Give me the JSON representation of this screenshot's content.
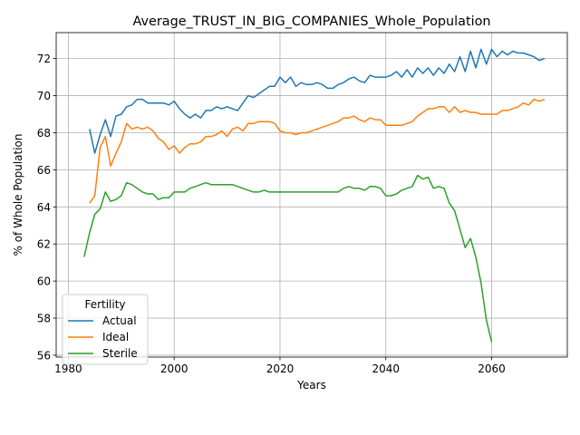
{
  "chart_data": {
    "type": "line",
    "title": "Average_TRUST_IN_BIG_COMPANIES_Whole_Population",
    "xlabel": "Years",
    "ylabel": "% of Whole Population",
    "xlim": [
      1977.7,
      2074.3
    ],
    "ylim": [
      55.9,
      73.4
    ],
    "xticks": [
      1980,
      2000,
      2020,
      2040,
      2060
    ],
    "yticks": [
      56,
      58,
      60,
      62,
      64,
      66,
      68,
      70,
      72
    ],
    "grid": true,
    "legend": {
      "title": "Fertility",
      "placement": "lower-left"
    },
    "series": [
      {
        "name": "Actual",
        "color": "#1f77b4",
        "x": [
          1984,
          1985,
          1986,
          1987,
          1988,
          1989,
          1990,
          1991,
          1992,
          1993,
          1994,
          1995,
          1996,
          1997,
          1998,
          1999,
          2000,
          2001,
          2002,
          2003,
          2004,
          2005,
          2006,
          2007,
          2008,
          2009,
          2010,
          2011,
          2012,
          2013,
          2014,
          2015,
          2016,
          2017,
          2018,
          2019,
          2020,
          2021,
          2022,
          2023,
          2024,
          2025,
          2026,
          2027,
          2028,
          2029,
          2030,
          2031,
          2032,
          2033,
          2034,
          2035,
          2036,
          2037,
          2038,
          2039,
          2040,
          2041,
          2042,
          2043,
          2044,
          2045,
          2046,
          2047,
          2048,
          2049,
          2050,
          2051,
          2052,
          2053,
          2054,
          2055,
          2056,
          2057,
          2058,
          2059,
          2060,
          2061,
          2062,
          2063,
          2064,
          2065,
          2066,
          2067,
          2068,
          2069,
          2070
        ],
        "values": [
          68.2,
          66.9,
          67.9,
          68.7,
          67.8,
          68.9,
          69.0,
          69.4,
          69.5,
          69.8,
          69.8,
          69.6,
          69.6,
          69.6,
          69.6,
          69.5,
          69.7,
          69.3,
          69.0,
          68.8,
          69.0,
          68.8,
          69.2,
          69.2,
          69.4,
          69.3,
          69.4,
          69.3,
          69.2,
          69.6,
          70.0,
          69.9,
          70.1,
          70.3,
          70.5,
          70.5,
          71.0,
          70.7,
          71.0,
          70.5,
          70.7,
          70.6,
          70.6,
          70.7,
          70.6,
          70.4,
          70.4,
          70.6,
          70.7,
          70.9,
          71.0,
          70.8,
          70.7,
          71.1,
          71.0,
          71.0,
          71.0,
          71.1,
          71.3,
          71.0,
          71.4,
          71.0,
          71.5,
          71.2,
          71.5,
          71.1,
          71.5,
          71.2,
          71.7,
          71.3,
          72.1,
          71.3,
          72.4,
          71.5,
          72.5,
          71.7,
          72.5,
          72.1,
          72.4,
          72.2,
          72.4,
          72.3,
          72.3,
          72.2,
          72.1,
          71.9,
          72.0
        ]
      },
      {
        "name": "Ideal",
        "color": "#ff7f0e",
        "x": [
          1984,
          1985,
          1986,
          1987,
          1988,
          1989,
          1990,
          1991,
          1992,
          1993,
          1994,
          1995,
          1996,
          1997,
          1998,
          1999,
          2000,
          2001,
          2002,
          2003,
          2004,
          2005,
          2006,
          2007,
          2008,
          2009,
          2010,
          2011,
          2012,
          2013,
          2014,
          2015,
          2016,
          2017,
          2018,
          2019,
          2020,
          2021,
          2022,
          2023,
          2024,
          2025,
          2026,
          2027,
          2028,
          2029,
          2030,
          2031,
          2032,
          2033,
          2034,
          2035,
          2036,
          2037,
          2038,
          2039,
          2040,
          2041,
          2042,
          2043,
          2044,
          2045,
          2046,
          2047,
          2048,
          2049,
          2050,
          2051,
          2052,
          2053,
          2054,
          2055,
          2056,
          2057,
          2058,
          2059,
          2060,
          2061,
          2062,
          2063,
          2064,
          2065,
          2066,
          2067,
          2068,
          2069,
          2070
        ],
        "values": [
          64.2,
          64.6,
          67.2,
          67.8,
          66.2,
          66.9,
          67.5,
          68.5,
          68.2,
          68.3,
          68.2,
          68.3,
          68.1,
          67.7,
          67.5,
          67.1,
          67.3,
          66.9,
          67.2,
          67.4,
          67.4,
          67.5,
          67.8,
          67.8,
          67.9,
          68.1,
          67.8,
          68.2,
          68.3,
          68.1,
          68.5,
          68.5,
          68.6,
          68.6,
          68.6,
          68.5,
          68.1,
          68.0,
          68.0,
          67.9,
          68.0,
          68.0,
          68.1,
          68.2,
          68.3,
          68.4,
          68.5,
          68.6,
          68.8,
          68.8,
          68.9,
          68.7,
          68.6,
          68.8,
          68.7,
          68.7,
          68.4,
          68.4,
          68.4,
          68.4,
          68.5,
          68.6,
          68.9,
          69.1,
          69.3,
          69.3,
          69.4,
          69.4,
          69.1,
          69.4,
          69.1,
          69.2,
          69.1,
          69.1,
          69.0,
          69.0,
          69.0,
          69.0,
          69.2,
          69.2,
          69.3,
          69.4,
          69.6,
          69.5,
          69.8,
          69.7,
          69.8
        ]
      },
      {
        "name": "Sterile",
        "color": "#2ca02c",
        "x": [
          1983,
          1984,
          1985,
          1986,
          1987,
          1988,
          1989,
          1990,
          1991,
          1992,
          1993,
          1994,
          1995,
          1996,
          1997,
          1998,
          1999,
          2000,
          2001,
          2002,
          2003,
          2004,
          2005,
          2006,
          2007,
          2008,
          2009,
          2010,
          2011,
          2012,
          2013,
          2014,
          2015,
          2016,
          2017,
          2018,
          2019,
          2020,
          2021,
          2022,
          2023,
          2024,
          2025,
          2026,
          2027,
          2028,
          2029,
          2030,
          2031,
          2032,
          2033,
          2034,
          2035,
          2036,
          2037,
          2038,
          2039,
          2040,
          2041,
          2042,
          2043,
          2044,
          2045,
          2046,
          2047,
          2048,
          2049,
          2050,
          2051,
          2052,
          2053,
          2054,
          2055,
          2056,
          2057,
          2058,
          2059,
          2060
        ],
        "values": [
          61.3,
          62.6,
          63.6,
          63.9,
          64.8,
          64.3,
          64.4,
          64.6,
          65.3,
          65.2,
          65.0,
          64.8,
          64.7,
          64.7,
          64.4,
          64.5,
          64.5,
          64.8,
          64.8,
          64.8,
          65.0,
          65.1,
          65.2,
          65.3,
          65.2,
          65.2,
          65.2,
          65.2,
          65.2,
          65.1,
          65.0,
          64.9,
          64.8,
          64.8,
          64.9,
          64.8,
          64.8,
          64.8,
          64.8,
          64.8,
          64.8,
          64.8,
          64.8,
          64.8,
          64.8,
          64.8,
          64.8,
          64.8,
          64.8,
          65.0,
          65.1,
          65.0,
          65.0,
          64.9,
          65.1,
          65.1,
          65.0,
          64.6,
          64.6,
          64.7,
          64.9,
          65.0,
          65.1,
          65.7,
          65.5,
          65.6,
          65.0,
          65.1,
          65.0,
          64.2,
          63.8,
          62.8,
          61.8,
          62.3,
          61.3,
          59.9,
          57.9,
          56.7
        ]
      }
    ]
  }
}
